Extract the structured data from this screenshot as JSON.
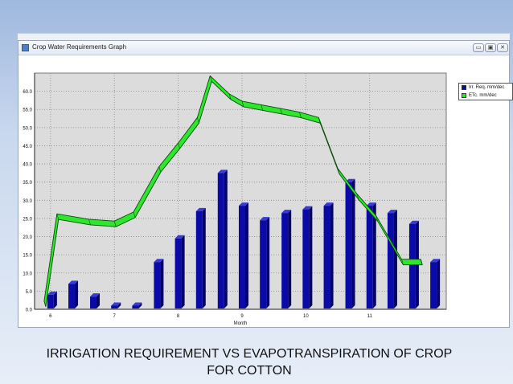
{
  "window": {
    "title": "Crop Water Requirements Graph",
    "minimize_glyph": "▭",
    "maximize_glyph": "▣",
    "close_glyph": "✕"
  },
  "caption": {
    "line1": "IRRIGATION REQUIREMENT VS EVAPOTRANSPIRATION OF CROP",
    "line2": "FOR COTTON"
  },
  "colors": {
    "bar": "#0a0aa8",
    "bar_side": "#040468",
    "ribbon": "#2ee62e",
    "ribbon_edge": "#0a4d0a",
    "plot_bg": "#dcdcdc"
  },
  "icons": [
    "app-icon",
    "minimize-icon",
    "maximize-icon",
    "close-icon"
  ],
  "chart_data": {
    "type": "bar",
    "xlabel": "Month",
    "ylabel": "",
    "ylim": [
      0,
      65
    ],
    "y_ticks": [
      "0.0",
      "5.0",
      "10.0",
      "15.0",
      "20.0",
      "25.0",
      "30.0",
      "35.0",
      "40.0",
      "45.0",
      "50.0",
      "55.0",
      "60.0"
    ],
    "x_tick_labels": [
      "6",
      "7",
      "8",
      "9",
      "10",
      "11"
    ],
    "grid": true,
    "legend_position": "top-right",
    "series": [
      {
        "name": "Irr. Req. mm/dec",
        "kind": "bar",
        "x": [
          6.0,
          6.33,
          6.67,
          7.0,
          7.33,
          7.67,
          8.0,
          8.33,
          8.67,
          9.0,
          9.33,
          9.67,
          10.0,
          10.33,
          10.67,
          11.0,
          11.33,
          11.67,
          12.0
        ],
        "values": [
          4.0,
          7.0,
          3.5,
          1.0,
          1.0,
          13.0,
          19.5,
          27.0,
          37.5,
          28.5,
          24.5,
          26.5,
          27.5,
          28.5,
          35.0,
          28.5,
          26.5,
          23.5,
          13.0
        ]
      },
      {
        "name": "ETc. mm/dec",
        "kind": "ribbon",
        "x": [
          5.9,
          6.1,
          6.6,
          7.0,
          7.3,
          7.7,
          8.0,
          8.3,
          8.5,
          8.8,
          9.0,
          9.3,
          9.6,
          9.9,
          10.2,
          10.5,
          10.8,
          11.1,
          11.5,
          11.8
        ],
        "values": [
          1.5,
          25.5,
          24.0,
          23.5,
          26.0,
          38.5,
          45.0,
          52.0,
          63.5,
          58.5,
          56.5,
          55.5,
          54.5,
          53.5,
          52.0,
          38.0,
          31.0,
          25.0,
          13.0,
          13.0
        ]
      }
    ]
  }
}
